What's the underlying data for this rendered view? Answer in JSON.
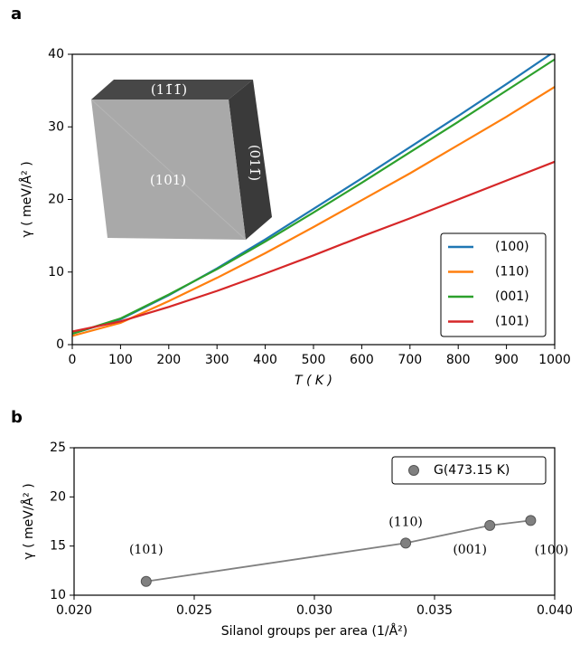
{
  "chart_data": [
    {
      "type": "line",
      "panel_label": "a",
      "xlabel": "T ( K )",
      "ylabel": "γ ( meV/Å² )",
      "x": [
        0,
        100,
        200,
        300,
        400,
        500,
        600,
        700,
        800,
        900,
        1000
      ],
      "series": [
        {
          "name": "(100)",
          "color": "#1f77b4",
          "values": [
            1.5,
            3.5,
            6.8,
            10.5,
            14.5,
            18.7,
            22.9,
            27.2,
            31.5,
            35.9,
            40.4
          ]
        },
        {
          "name": "(110)",
          "color": "#ff7f0e",
          "values": [
            1.2,
            3.0,
            6.0,
            9.2,
            12.6,
            16.2,
            19.9,
            23.6,
            27.5,
            31.4,
            35.5
          ]
        },
        {
          "name": "(001)",
          "color": "#2ca02c",
          "values": [
            1.5,
            3.6,
            6.9,
            10.4,
            14.2,
            18.2,
            22.3,
            26.5,
            30.7,
            35.0,
            39.3
          ]
        },
        {
          "name": "(101)",
          "color": "#d62728",
          "values": [
            1.8,
            3.2,
            5.2,
            7.4,
            9.8,
            12.3,
            14.9,
            17.4,
            20.0,
            22.6,
            25.2
          ]
        }
      ],
      "xlim": [
        0,
        1000
      ],
      "xticks": [
        0,
        100,
        200,
        300,
        400,
        500,
        600,
        700,
        800,
        900,
        1000
      ],
      "ylim": [
        0,
        40
      ],
      "yticks": [
        0,
        10,
        20,
        30,
        40
      ],
      "legend": "lower right",
      "inset_labels": [
        "(11̄1̄)",
        "(101)",
        "(011̄)"
      ]
    },
    {
      "type": "scatter",
      "panel_label": "b",
      "xlabel": "Silanol groups per area  (1/Å²)",
      "ylabel": "γ ( meV/Å² )",
      "name": "G(473.15 K)",
      "color": "#808080",
      "x": [
        0.023,
        0.0338,
        0.0373,
        0.039
      ],
      "values": [
        11.4,
        15.3,
        17.1,
        17.6
      ],
      "point_labels": [
        "(101)",
        "(110)",
        "(001)",
        "(100)"
      ],
      "xlim": [
        0.02,
        0.04
      ],
      "xticks": [
        {
          "value": 0.02,
          "label": "0.020"
        },
        {
          "value": 0.025,
          "label": "0.025"
        },
        {
          "value": 0.03,
          "label": "0.030"
        },
        {
          "value": 0.035,
          "label": "0.035"
        },
        {
          "value": 0.04,
          "label": "0.040"
        }
      ],
      "ylim": [
        10,
        25
      ],
      "yticks": [
        10,
        15,
        20,
        25
      ],
      "legend": "upper right"
    }
  ]
}
